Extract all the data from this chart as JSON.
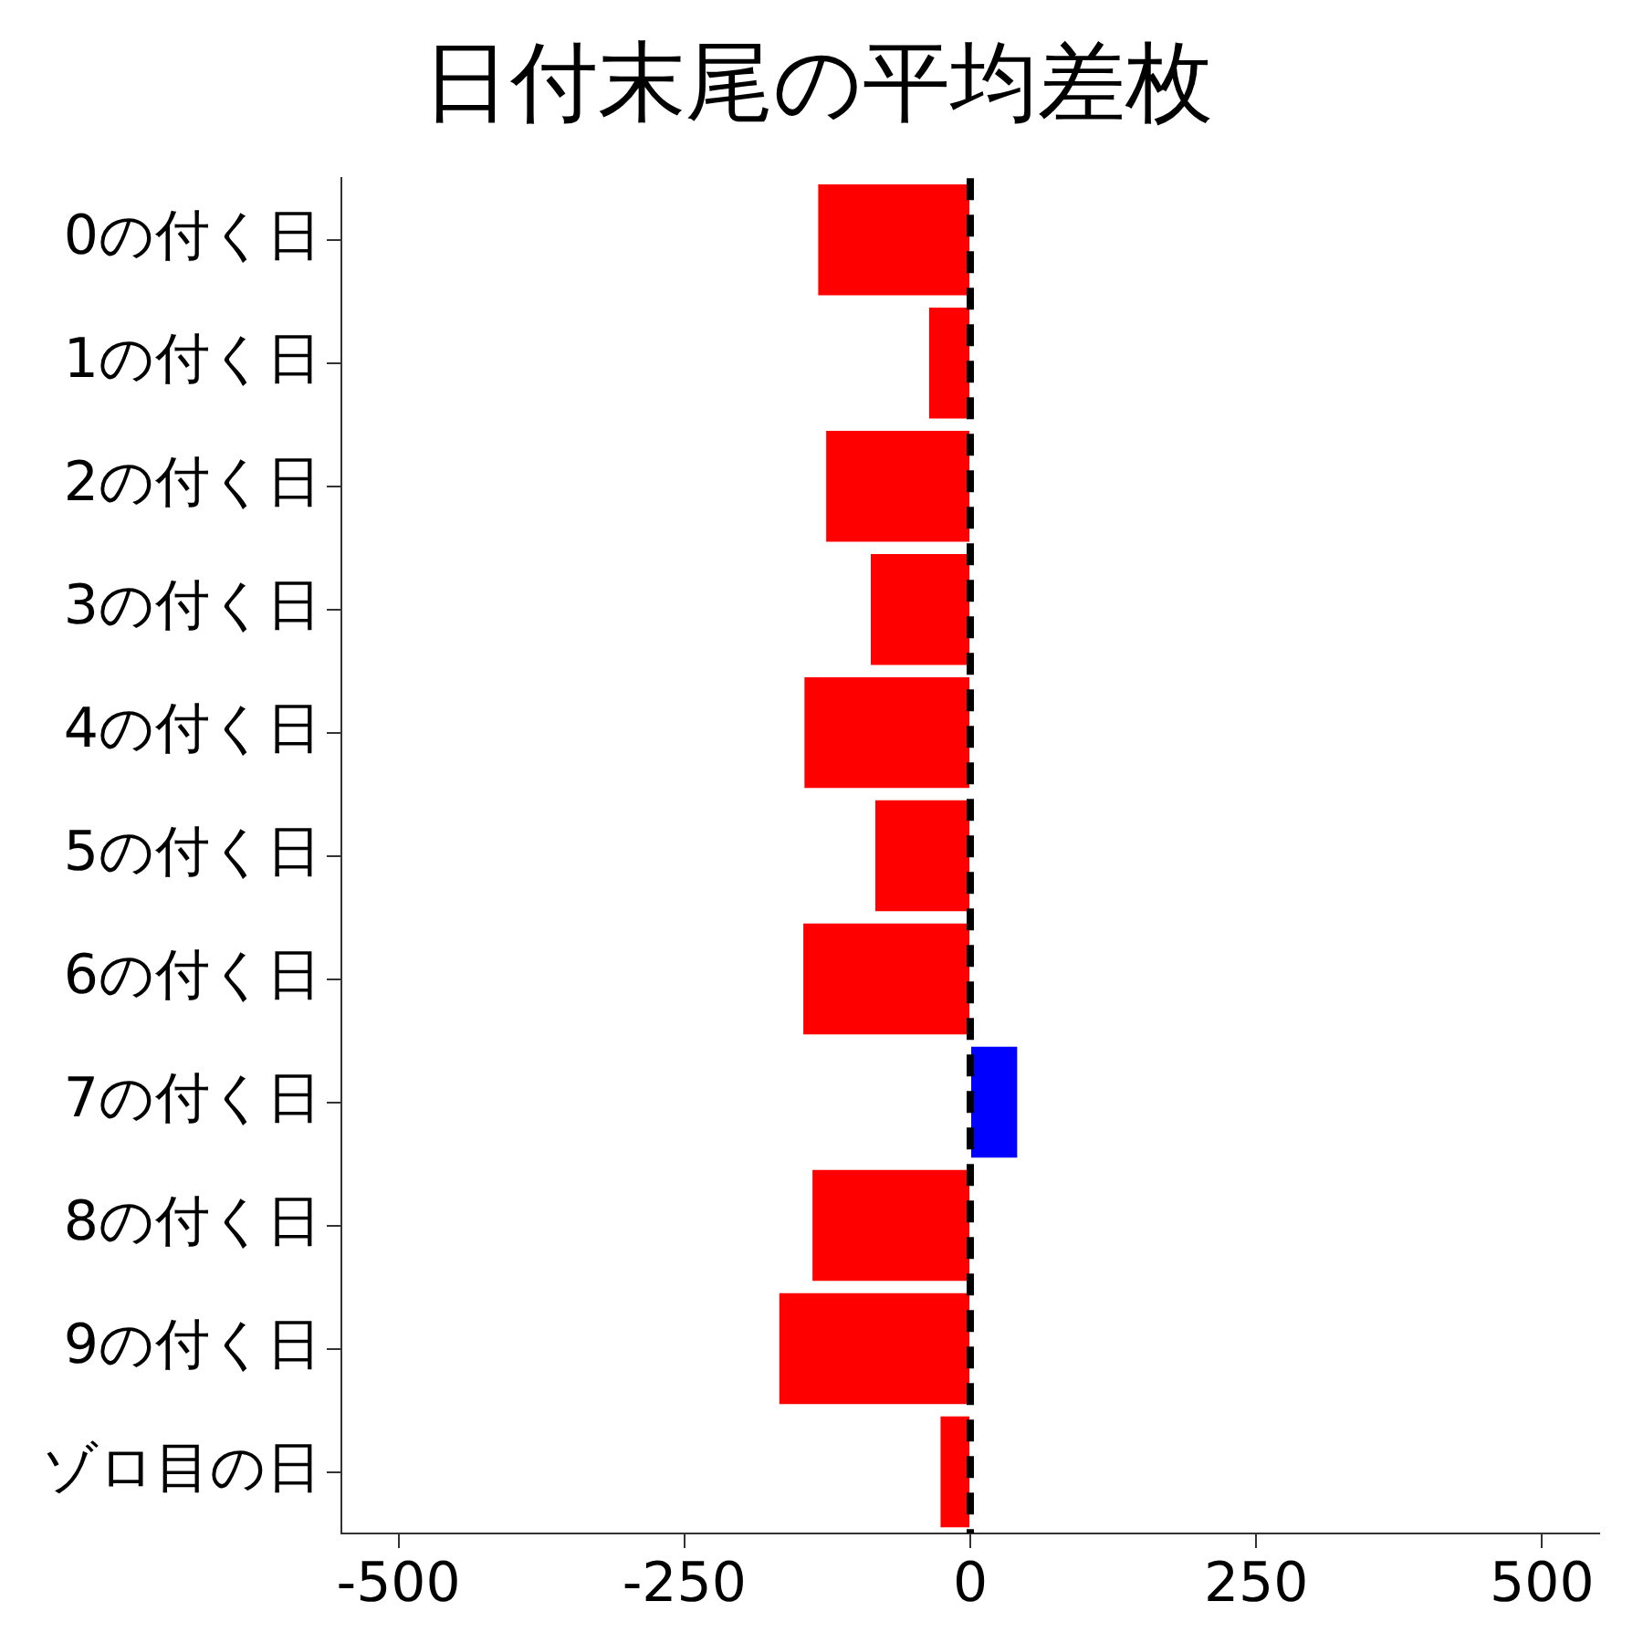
{
  "chart_data": {
    "type": "bar",
    "orientation": "horizontal",
    "title": "日付末尾の平均差枚",
    "categories": [
      "0の付く日",
      "1の付く日",
      "2の付く日",
      "3の付く日",
      "4の付く日",
      "5の付く日",
      "6の付く日",
      "7の付く日",
      "8の付く日",
      "9の付く日",
      "ゾロ目の日"
    ],
    "values": [
      -133,
      -36,
      -126,
      -87,
      -145,
      -83,
      -146,
      41,
      -138,
      -167,
      -26
    ],
    "colors": [
      "#ff0000",
      "#ff0000",
      "#ff0000",
      "#ff0000",
      "#ff0000",
      "#ff0000",
      "#ff0000",
      "#0000ff",
      "#ff0000",
      "#ff0000",
      "#ff0000"
    ],
    "xlim": [
      -550,
      550
    ],
    "xticks": [
      -500,
      -250,
      0,
      250,
      500
    ],
    "grid": false,
    "legend": false,
    "ref_lines": [
      {
        "axis": "x",
        "value": 0,
        "color": "#000000",
        "line_style": "dashed"
      }
    ]
  }
}
